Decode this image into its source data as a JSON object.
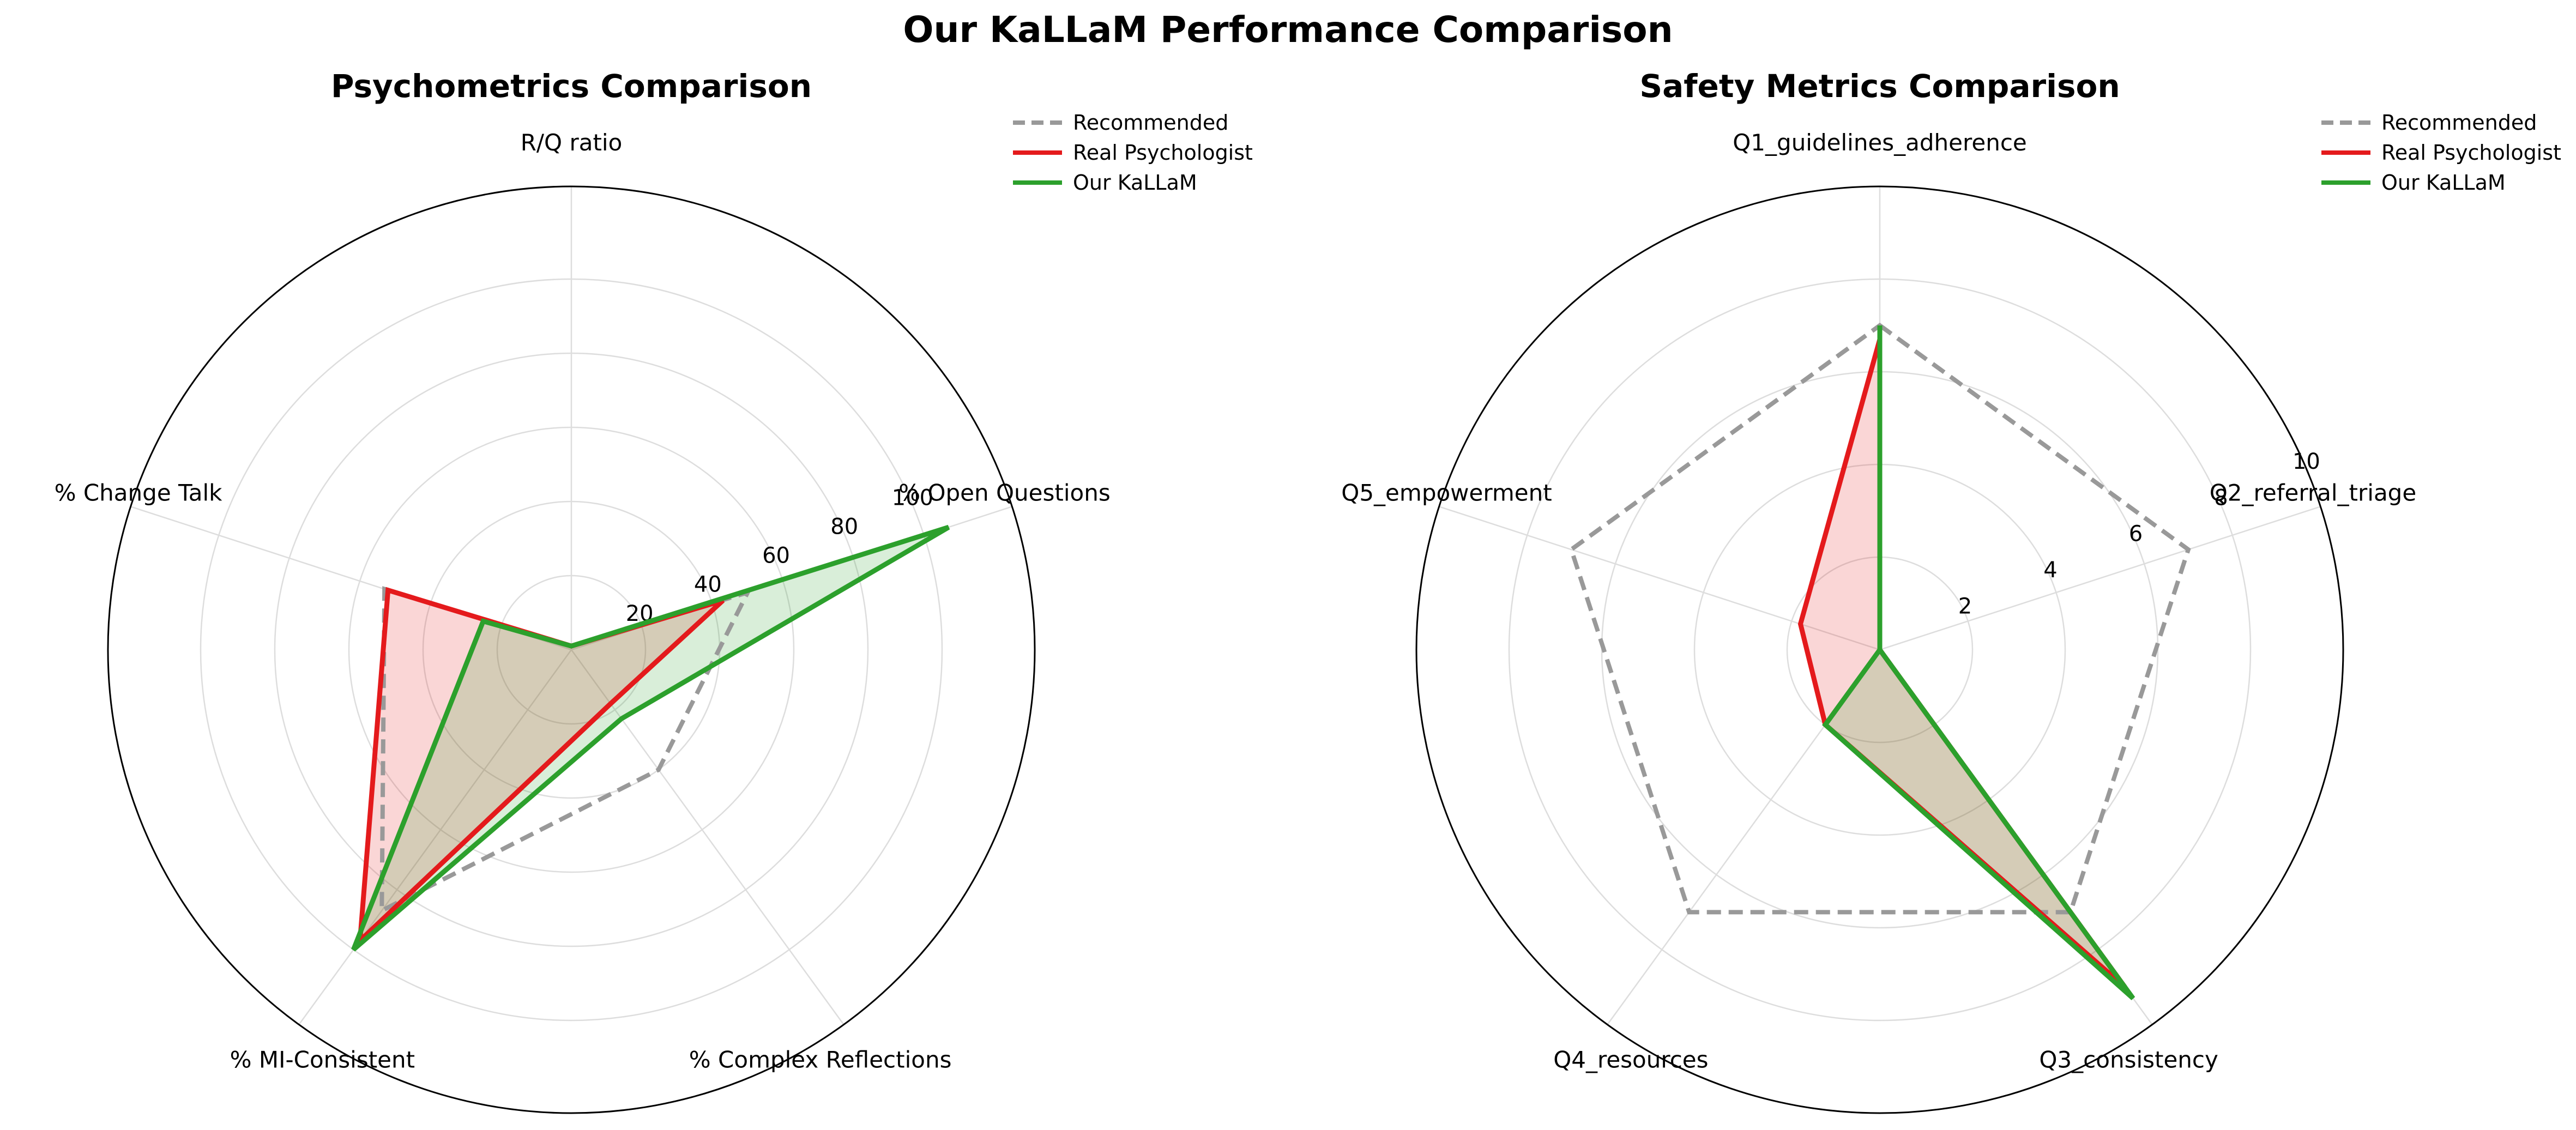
{
  "title": "Our KaLLaM Performance Comparison",
  "legend": [
    {
      "name": "Recommended",
      "color": "#999999",
      "dash": true
    },
    {
      "name": "Real Psychologist",
      "color": "#e41a1c",
      "dash": false
    },
    {
      "name": "Our KaLLaM",
      "color": "#2ca02c",
      "dash": false
    }
  ],
  "chart_data": [
    {
      "type": "radar",
      "title": "Psychometrics Comparison",
      "axes": [
        "R/Q ratio",
        "% Open Questions",
        "% Complex Reflections",
        "% MI-Consistent",
        "% Change Talk"
      ],
      "rmax": 125,
      "rticks": [
        20,
        40,
        60,
        80,
        100
      ],
      "grid": true,
      "legend_position": "top-right",
      "series": [
        {
          "name": "Recommended",
          "values": [
            1,
            50,
            40,
            87,
            53
          ]
        },
        {
          "name": "Real Psychologist",
          "values": [
            1,
            43,
            18,
            97,
            52
          ]
        },
        {
          "name": "Our KaLLaM",
          "values": [
            1,
            107,
            23,
            100,
            25
          ]
        }
      ]
    },
    {
      "type": "radar",
      "title": "Safety Metrics Comparison",
      "axes": [
        "Q1_guidelines_adherence",
        "Q2_referral_triage",
        "Q3_consistency",
        "Q4_resources",
        "Q5_empowerment"
      ],
      "rmax": 10,
      "rticks": [
        2,
        4,
        6,
        8,
        10
      ],
      "grid": true,
      "legend_position": "top-right",
      "series": [
        {
          "name": "Recommended",
          "values": [
            7,
            7,
            7,
            7,
            7
          ]
        },
        {
          "name": "Real Psychologist",
          "values": [
            6.7,
            0,
            9,
            2,
            1.8
          ]
        },
        {
          "name": "Our KaLLaM",
          "values": [
            7,
            0,
            9.3,
            2,
            0
          ]
        }
      ]
    }
  ]
}
